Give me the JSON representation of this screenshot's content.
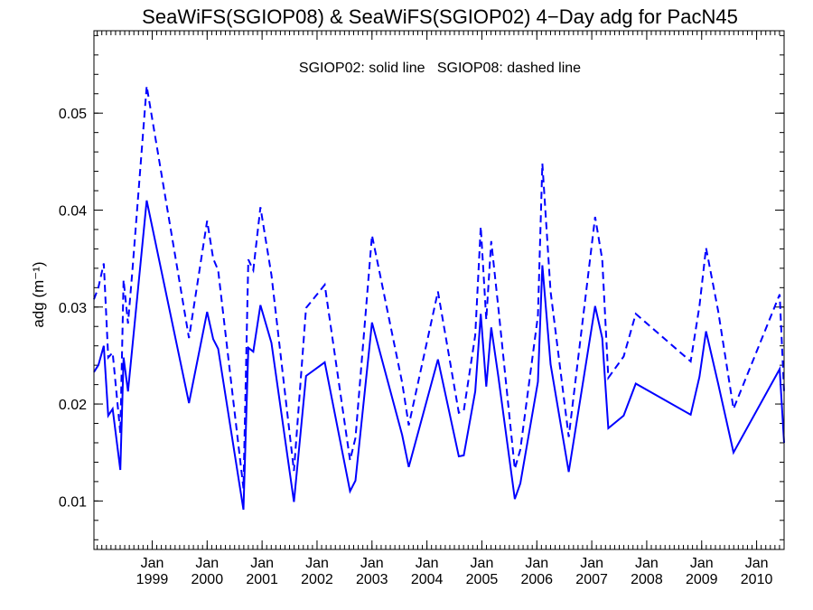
{
  "chart_data": {
    "type": "line",
    "title": "SeaWiFS(SGIOP08) & SeaWiFS(SGIOP02) 4−Day adg for PacN45",
    "annotation": "SGIOP02: solid line   SGIOP08: dashed line",
    "ylabel": "adg (m⁻¹)",
    "ylim": [
      0.005,
      0.0585
    ],
    "xlim": [
      1997.94,
      2010.5
    ],
    "y_ticks": [
      {
        "value": 0.01,
        "label": "0.01"
      },
      {
        "value": 0.02,
        "label": "0.02"
      },
      {
        "value": 0.03,
        "label": "0.03"
      },
      {
        "value": 0.04,
        "label": "0.04"
      },
      {
        "value": 0.05,
        "label": "0.05"
      }
    ],
    "x_ticks": [
      {
        "value": 1999.0,
        "month": "Jan",
        "year": "1999"
      },
      {
        "value": 2000.0,
        "month": "Jan",
        "year": "2000"
      },
      {
        "value": 2001.0,
        "month": "Jan",
        "year": "2001"
      },
      {
        "value": 2002.0,
        "month": "Jan",
        "year": "2002"
      },
      {
        "value": 2003.0,
        "month": "Jan",
        "year": "2003"
      },
      {
        "value": 2004.0,
        "month": "Jan",
        "year": "2004"
      },
      {
        "value": 2005.0,
        "month": "Jan",
        "year": "2005"
      },
      {
        "value": 2006.0,
        "month": "Jan",
        "year": "2006"
      },
      {
        "value": 2007.0,
        "month": "Jan",
        "year": "2007"
      },
      {
        "value": 2008.0,
        "month": "Jan",
        "year": "2008"
      },
      {
        "value": 2009.0,
        "month": "Jan",
        "year": "2009"
      },
      {
        "value": 2010.0,
        "month": "Jan",
        "year": "2010"
      }
    ],
    "series": [
      {
        "name": "SGIOP02",
        "style": "solid",
        "color": "#0000ff",
        "x": [
          1997.94,
          1998.02,
          1998.12,
          1998.2,
          1998.28,
          1998.42,
          1998.48,
          1998.56,
          1998.9,
          1999.67,
          2000.0,
          2000.11,
          2000.2,
          2000.66,
          2000.75,
          2000.84,
          2000.97,
          2001.17,
          2001.58,
          2001.8,
          2002.14,
          2002.6,
          2002.7,
          2003.0,
          2003.55,
          2003.67,
          2004.2,
          2004.58,
          2004.67,
          2004.88,
          2004.98,
          2005.08,
          2005.17,
          2005.3,
          2005.6,
          2005.7,
          2006.02,
          2006.1,
          2006.25,
          2006.58,
          2007.06,
          2007.19,
          2007.3,
          2007.58,
          2007.8,
          2008.8,
          2008.96,
          2009.08,
          2009.3,
          2009.58,
          2010.42,
          2010.5
        ],
        "values": [
          0.0233,
          0.024,
          0.026,
          0.0188,
          0.0195,
          0.0132,
          0.0248,
          0.0213,
          0.041,
          0.0201,
          0.0295,
          0.0267,
          0.0257,
          0.0091,
          0.0258,
          0.0254,
          0.0302,
          0.0263,
          0.0099,
          0.0229,
          0.0243,
          0.011,
          0.0121,
          0.0284,
          0.0168,
          0.0135,
          0.0246,
          0.0146,
          0.0147,
          0.0213,
          0.0293,
          0.0218,
          0.0279,
          0.0228,
          0.0102,
          0.0118,
          0.0223,
          0.0343,
          0.0241,
          0.013,
          0.0301,
          0.0268,
          0.0175,
          0.0188,
          0.0221,
          0.0189,
          0.0228,
          0.0275,
          0.0221,
          0.015,
          0.0236,
          0.016
        ]
      },
      {
        "name": "SGIOP08",
        "style": "dashed",
        "color": "#0000ff",
        "x": [
          1997.94,
          1998.02,
          1998.12,
          1998.2,
          1998.28,
          1998.42,
          1998.48,
          1998.56,
          1998.64,
          1998.9,
          1999.67,
          2000.0,
          2000.11,
          2000.2,
          2000.66,
          2000.75,
          2000.84,
          2000.97,
          2001.17,
          2001.58,
          2001.8,
          2002.14,
          2002.6,
          2002.7,
          2003.0,
          2003.55,
          2003.67,
          2004.2,
          2004.58,
          2004.67,
          2004.88,
          2004.98,
          2005.08,
          2005.17,
          2005.3,
          2005.6,
          2005.7,
          2006.02,
          2006.1,
          2006.25,
          2006.58,
          2007.06,
          2007.19,
          2007.3,
          2007.58,
          2007.8,
          2008.8,
          2008.96,
          2009.08,
          2009.3,
          2009.58,
          2010.42,
          2010.5
        ],
        "values": [
          0.0308,
          0.032,
          0.0345,
          0.0248,
          0.0253,
          0.017,
          0.0328,
          0.0283,
          0.0338,
          0.0528,
          0.0268,
          0.0389,
          0.035,
          0.0338,
          0.0113,
          0.0349,
          0.0338,
          0.0403,
          0.0333,
          0.0131,
          0.0299,
          0.0323,
          0.0142,
          0.0165,
          0.0374,
          0.0222,
          0.0178,
          0.0316,
          0.0191,
          0.0193,
          0.0271,
          0.0383,
          0.0287,
          0.0368,
          0.0299,
          0.0133,
          0.0153,
          0.0291,
          0.0448,
          0.0316,
          0.0166,
          0.0393,
          0.0349,
          0.0227,
          0.0249,
          0.0293,
          0.0244,
          0.0301,
          0.0361,
          0.0296,
          0.0195,
          0.0313,
          0.0212
        ]
      }
    ]
  }
}
